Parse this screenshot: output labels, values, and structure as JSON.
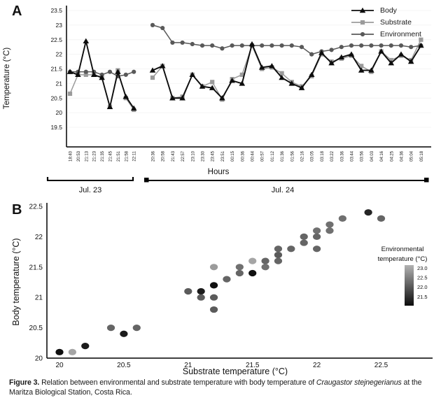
{
  "figure": {
    "panel_a_label": "A",
    "panel_b_label": "B"
  },
  "caption": {
    "label": "Figure 3.",
    "text_before_species": "Relation between environmental and substrate temperature with body temperature of",
    "species": "Craugastor stejnegerianus",
    "text_after_species": "at the Maritza Biological Station, Costa Rica."
  },
  "chart_data": [
    {
      "id": "panel_a",
      "type": "line",
      "panel_label": "A",
      "xlabel": "Hours",
      "ylabel": "Temperature (°C)",
      "ylim": [
        19.5,
        23.5
      ],
      "yticks": [
        "23.5",
        "23",
        "22.5",
        "22",
        "21.5",
        "21",
        "20.5",
        "20",
        "19.5"
      ],
      "grid": "faint-horizontal",
      "legend_position": "top-right",
      "groups": [
        {
          "label": "Jul. 23",
          "categories": [
            "18:40",
            "20:53",
            "21:13",
            "21:23",
            "21:35",
            "21:45",
            "21:51",
            "21:58",
            "22:11"
          ]
        },
        {
          "label": "Jul. 24",
          "categories": [
            "20:36",
            "20:58",
            "21:43",
            "22:57",
            "23:10",
            "23:30",
            "23:45",
            "23:51",
            "00:15",
            "00:36",
            "00:44",
            "00:57",
            "01:12",
            "01:36",
            "01:56",
            "02:16",
            "03:05",
            "03:18",
            "03:22",
            "03:36",
            "03:44",
            "03:56",
            "04:03",
            "04:16",
            "04:25",
            "04:36",
            "05:04",
            "05:18"
          ]
        }
      ],
      "series": [
        {
          "name": "Body",
          "marker": "triangle",
          "color": "#0d0d0d",
          "values": [
            [
              21.4,
              21.3,
              22.45,
              21.3,
              21.2,
              20.2,
              21.4,
              20.55,
              20.15
            ],
            [
              21.45,
              21.6,
              20.5,
              20.5,
              21.3,
              20.9,
              20.85,
              20.5,
              21.1,
              21.0,
              22.35,
              21.55,
              21.6,
              21.2,
              21.0,
              20.85,
              21.3,
              22.05,
              21.7,
              21.9,
              22.0,
              21.45,
              21.45,
              22.1,
              21.7,
              22.0,
              21.75,
              22.3
            ]
          ]
        },
        {
          "name": "Substrate",
          "marker": "square",
          "color": "#9b9b9b",
          "values": [
            [
              20.65,
              21.3,
              21.3,
              21.3,
              21.2,
              20.2,
              21.45,
              20.5,
              20.1
            ],
            [
              21.2,
              21.6,
              20.5,
              20.55,
              21.3,
              20.9,
              21.05,
              20.45,
              21.15,
              21.3,
              22.3,
              21.5,
              21.55,
              21.35,
              21.05,
              20.9,
              21.25,
              22.0,
              21.75,
              21.85,
              21.95,
              21.6,
              21.4,
              22.1,
              21.8,
              21.95,
              21.8,
              22.5
            ]
          ]
        },
        {
          "name": "Environment",
          "marker": "circle",
          "color": "#595959",
          "values": [
            [
              21.4,
              21.4,
              21.4,
              21.4,
              21.3,
              21.4,
              21.25,
              21.3,
              21.4
            ],
            [
              23.0,
              22.9,
              22.4,
              22.4,
              22.35,
              22.3,
              22.3,
              22.2,
              22.3,
              22.3,
              22.3,
              22.3,
              22.3,
              22.3,
              22.3,
              22.25,
              22.0,
              22.1,
              22.15,
              22.25,
              22.3,
              22.3,
              22.3,
              22.3,
              22.3,
              22.3,
              22.25,
              22.3
            ]
          ]
        }
      ]
    },
    {
      "id": "panel_b",
      "type": "scatter",
      "panel_label": "B",
      "xlabel": "Substrate temperature (°C)",
      "ylabel": "Body temperature (°C)",
      "xlim": [
        19.9,
        22.8
      ],
      "ylim": [
        20.0,
        22.5
      ],
      "xticks": [
        "20",
        "20.5",
        "21",
        "21.5",
        "22",
        "22.5"
      ],
      "yticks": [
        "20",
        "20.5",
        "21",
        "21.5",
        "22",
        "22.5"
      ],
      "colorbar": {
        "title_line1": "Environmental",
        "title_line2": "temperature (°C)",
        "ticks": [
          "23.0",
          "22.5",
          "22.0",
          "21.5"
        ],
        "value_range": [
          21.5,
          23.0
        ],
        "light_color": "#b2b2b2",
        "dark_color": "#0b0b0b"
      },
      "points": [
        {
          "x": 20.0,
          "y": 20.1,
          "env": 21.5
        },
        {
          "x": 20.1,
          "y": 20.1,
          "env": 22.9
        },
        {
          "x": 20.2,
          "y": 20.2,
          "env": 21.6
        },
        {
          "x": 20.4,
          "y": 20.5,
          "env": 22.3
        },
        {
          "x": 20.5,
          "y": 20.4,
          "env": 21.6
        },
        {
          "x": 20.6,
          "y": 20.5,
          "env": 22.3
        },
        {
          "x": 21.0,
          "y": 21.1,
          "env": 22.2
        },
        {
          "x": 21.1,
          "y": 21.1,
          "env": 21.6
        },
        {
          "x": 21.1,
          "y": 21.0,
          "env": 22.2
        },
        {
          "x": 21.2,
          "y": 21.5,
          "env": 22.8
        },
        {
          "x": 21.2,
          "y": 21.2,
          "env": 21.5
        },
        {
          "x": 21.2,
          "y": 21.0,
          "env": 22.2
        },
        {
          "x": 21.2,
          "y": 20.8,
          "env": 22.2
        },
        {
          "x": 21.3,
          "y": 21.3,
          "env": 22.3
        },
        {
          "x": 21.4,
          "y": 21.5,
          "env": 22.4
        },
        {
          "x": 21.4,
          "y": 21.4,
          "env": 22.3
        },
        {
          "x": 21.5,
          "y": 21.6,
          "env": 22.9
        },
        {
          "x": 21.5,
          "y": 21.4,
          "env": 21.5
        },
        {
          "x": 21.6,
          "y": 21.6,
          "env": 22.3
        },
        {
          "x": 21.6,
          "y": 21.5,
          "env": 22.4
        },
        {
          "x": 21.7,
          "y": 21.8,
          "env": 22.3
        },
        {
          "x": 21.7,
          "y": 21.7,
          "env": 22.2
        },
        {
          "x": 21.7,
          "y": 21.6,
          "env": 22.3
        },
        {
          "x": 21.8,
          "y": 21.8,
          "env": 22.3
        },
        {
          "x": 21.9,
          "y": 22.0,
          "env": 22.3
        },
        {
          "x": 21.9,
          "y": 21.9,
          "env": 22.3
        },
        {
          "x": 22.0,
          "y": 22.1,
          "env": 22.4
        },
        {
          "x": 22.0,
          "y": 22.0,
          "env": 22.3
        },
        {
          "x": 22.0,
          "y": 21.8,
          "env": 22.3
        },
        {
          "x": 22.1,
          "y": 22.2,
          "env": 22.4
        },
        {
          "x": 22.1,
          "y": 22.1,
          "env": 22.4
        },
        {
          "x": 22.2,
          "y": 22.3,
          "env": 22.4
        },
        {
          "x": 22.4,
          "y": 22.4,
          "env": 21.7
        },
        {
          "x": 22.5,
          "y": 22.3,
          "env": 22.3
        }
      ]
    }
  ]
}
